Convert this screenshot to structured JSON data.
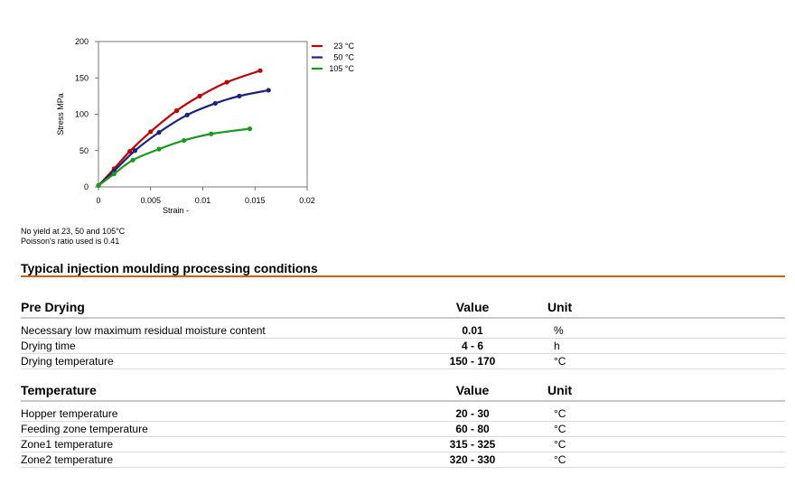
{
  "chart_data": {
    "type": "line",
    "title": "",
    "xlabel": "Strain -",
    "ylabel": "Stress MPa",
    "xlim": [
      0,
      0.02
    ],
    "ylim": [
      0,
      200
    ],
    "x_ticks": [
      "0",
      "0.005",
      "0.01",
      "0.015",
      "0.02"
    ],
    "y_ticks": [
      "0",
      "50",
      "100",
      "150",
      "200"
    ],
    "legend_position": "top-right",
    "grid": false,
    "series": [
      {
        "name": "23 °C",
        "color": "#c00000",
        "x": [
          0,
          0.0015,
          0.003,
          0.005,
          0.0075,
          0.0097,
          0.0123,
          0.0155
        ],
        "y": [
          2,
          25,
          49,
          76,
          105,
          125,
          144,
          160
        ]
      },
      {
        "name": "50 °C",
        "color": "#1a237e",
        "x": [
          0,
          0.0015,
          0.0035,
          0.0058,
          0.0085,
          0.0112,
          0.0135,
          0.0163
        ],
        "y": [
          2,
          22,
          50,
          75,
          99,
          115,
          125,
          133
        ]
      },
      {
        "name": "105 °C",
        "color": "#1a9a1a",
        "x": [
          0,
          0.0015,
          0.0033,
          0.0058,
          0.0082,
          0.0108,
          0.0145
        ],
        "y": [
          2,
          18,
          37,
          52,
          64,
          73,
          80
        ]
      }
    ]
  },
  "notes": {
    "line1": "No yield at 23, 50 and 105°C",
    "line2": "Poisson's ratio used is 0.41"
  },
  "section_title": "Typical injection moulding processing conditions",
  "tables": [
    {
      "header": {
        "name": "Pre Drying",
        "value": "Value",
        "unit": "Unit"
      },
      "rows": [
        {
          "name": "Necessary low maximum residual moisture content",
          "value": "0.01",
          "unit": "%"
        },
        {
          "name": "Drying time",
          "value": "4 - 6",
          "unit": "h"
        },
        {
          "name": "Drying temperature",
          "value": "150 - 170",
          "unit": "°C"
        }
      ]
    },
    {
      "header": {
        "name": "Temperature",
        "value": "Value",
        "unit": "Unit"
      },
      "rows": [
        {
          "name": "Hopper temperature",
          "value": "20 - 30",
          "unit": "°C"
        },
        {
          "name": "Feeding zone temperature",
          "value": "60 - 80",
          "unit": "°C"
        },
        {
          "name": "Zone1 temperature",
          "value": "315 - 325",
          "unit": "°C"
        },
        {
          "name": "Zone2 temperature",
          "value": "320 - 330",
          "unit": "°C"
        }
      ]
    }
  ]
}
